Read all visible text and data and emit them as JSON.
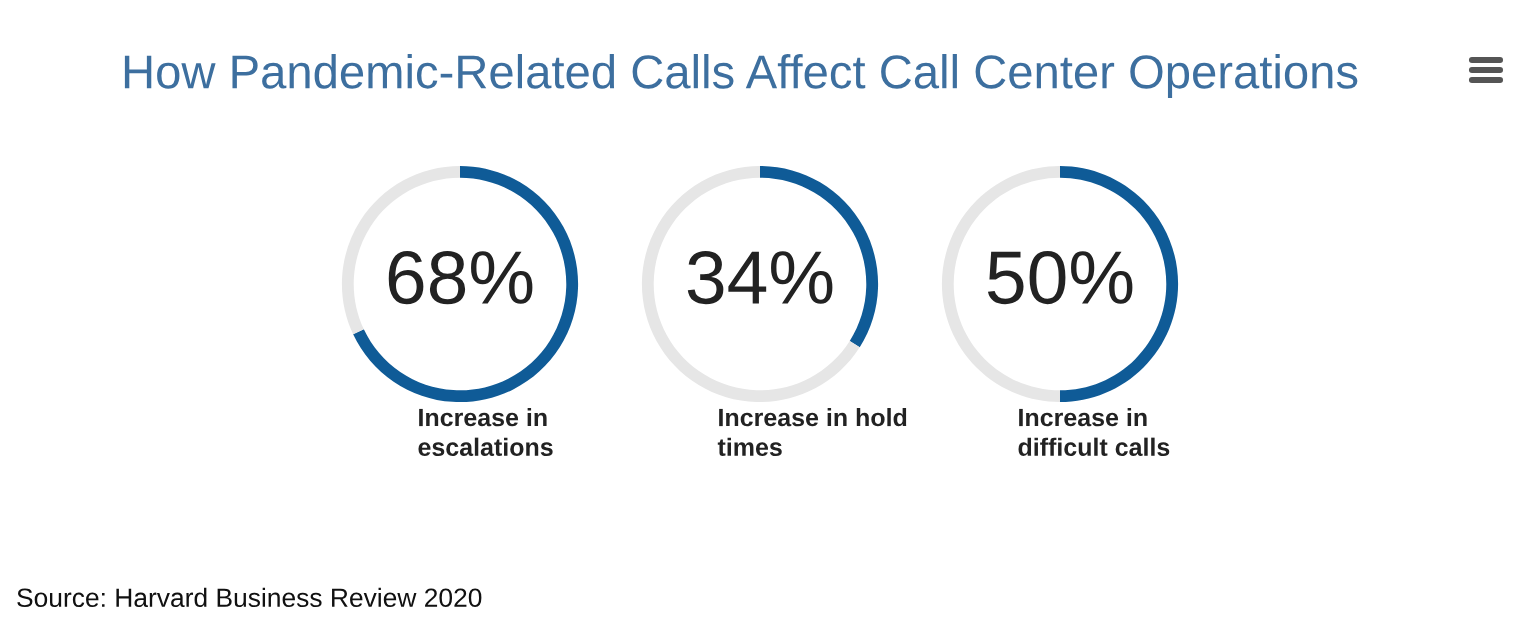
{
  "chart_data": [
    {
      "type": "donut",
      "title": "How Pandemic-Related Calls Affect Call Center Operations",
      "xlabel": "Increase in escalations",
      "categories": [
        null,
        null
      ],
      "values": [
        68,
        32
      ],
      "colors": [
        "#0f5b97",
        "#e6e6e6"
      ],
      "value_labels": [
        "68%",
        null
      ],
      "annotations": [
        "Source: Harvard Business Review 2020"
      ]
    },
    {
      "type": "donut",
      "xlabel": "Increase in hold times",
      "categories": [
        null,
        null
      ],
      "values": [
        34,
        66
      ],
      "colors": [
        "#0f5b97",
        "#e6e6e6"
      ],
      "value_labels": [
        "34%",
        null
      ]
    },
    {
      "type": "donut",
      "xlabel": "Increase in difficult calls",
      "categories": [
        null,
        null
      ],
      "values": [
        50,
        50
      ],
      "colors": [
        "#0f5b97",
        "#e6e6e6"
      ],
      "value_labels": [
        "50%",
        null
      ]
    }
  ]
}
